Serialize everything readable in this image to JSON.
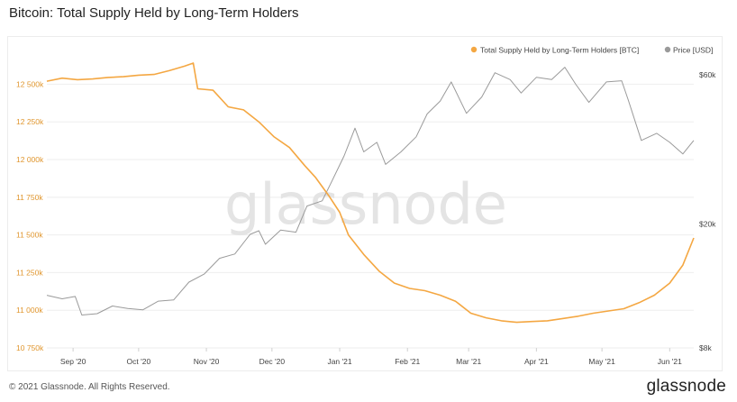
{
  "header": {
    "title": "Bitcoin: Total Supply Held by Long-Term Holders"
  },
  "footer": {
    "copyright": "© 2021 Glassnode. All Rights Reserved.",
    "logo": "glassnode"
  },
  "watermark": "glassnode",
  "colors": {
    "lth": "#f4a742",
    "price": "#9a9a9a",
    "grid": "#eeeeee",
    "left_axis": "#e0962e"
  },
  "chart_data": {
    "type": "line",
    "title": "Bitcoin: Total Supply Held by Long-Term Holders",
    "legend_position": "top-right",
    "grid": true,
    "x_ticks": [
      "Sep '20",
      "Oct '20",
      "Nov '20",
      "Dec '20",
      "Jan '21",
      "Feb '21",
      "Mar '21",
      "Apr '21",
      "May '21",
      "Jun '21"
    ],
    "x_range": [
      "2020-08-20",
      "2021-06-12"
    ],
    "y_left": {
      "ticks": [
        "10 750k",
        "11 000k",
        "11 250k",
        "11 500k",
        "11 750k",
        "12 000k",
        "12 250k",
        "12 500k"
      ],
      "tick_values": [
        10750000,
        11000000,
        11250000,
        11500000,
        11750000,
        12000000,
        12250000,
        12500000
      ],
      "range": [
        10750000,
        12700000
      ]
    },
    "y_right": {
      "scale": "log",
      "ticks": [
        "$8k",
        "$20k",
        "$60k"
      ],
      "tick_values": [
        8000,
        20000,
        60000
      ],
      "range": [
        8000,
        70000
      ]
    },
    "series": [
      {
        "name": "Total Supply Held by Long-Term Holders [BTC]",
        "axis": "left",
        "points": [
          [
            "2020-08-20",
            12520000
          ],
          [
            "2020-08-27",
            12540000
          ],
          [
            "2020-09-03",
            12530000
          ],
          [
            "2020-09-10",
            12535000
          ],
          [
            "2020-09-17",
            12545000
          ],
          [
            "2020-09-24",
            12550000
          ],
          [
            "2020-10-01",
            12560000
          ],
          [
            "2020-10-08",
            12565000
          ],
          [
            "2020-10-15",
            12590000
          ],
          [
            "2020-10-22",
            12620000
          ],
          [
            "2020-10-26",
            12640000
          ],
          [
            "2020-10-28",
            12470000
          ],
          [
            "2020-11-04",
            12460000
          ],
          [
            "2020-11-11",
            12350000
          ],
          [
            "2020-11-18",
            12330000
          ],
          [
            "2020-11-25",
            12250000
          ],
          [
            "2020-12-02",
            12150000
          ],
          [
            "2020-12-09",
            12080000
          ],
          [
            "2020-12-16",
            11960000
          ],
          [
            "2020-12-21",
            11880000
          ],
          [
            "2020-12-27",
            11760000
          ],
          [
            "2021-01-01",
            11650000
          ],
          [
            "2021-01-05",
            11500000
          ],
          [
            "2021-01-12",
            11370000
          ],
          [
            "2021-01-19",
            11260000
          ],
          [
            "2021-01-26",
            11180000
          ],
          [
            "2021-02-02",
            11145000
          ],
          [
            "2021-02-09",
            11130000
          ],
          [
            "2021-02-16",
            11100000
          ],
          [
            "2021-02-23",
            11060000
          ],
          [
            "2021-03-02",
            10980000
          ],
          [
            "2021-03-09",
            10950000
          ],
          [
            "2021-03-16",
            10930000
          ],
          [
            "2021-03-23",
            10920000
          ],
          [
            "2021-03-30",
            10925000
          ],
          [
            "2021-04-06",
            10930000
          ],
          [
            "2021-04-13",
            10945000
          ],
          [
            "2021-04-20",
            10960000
          ],
          [
            "2021-04-27",
            10980000
          ],
          [
            "2021-05-04",
            10995000
          ],
          [
            "2021-05-11",
            11010000
          ],
          [
            "2021-05-18",
            11050000
          ],
          [
            "2021-05-25",
            11100000
          ],
          [
            "2021-06-01",
            11180000
          ],
          [
            "2021-06-07",
            11300000
          ],
          [
            "2021-06-12",
            11480000
          ]
        ]
      },
      {
        "name": "Price [USD]",
        "axis": "right",
        "points": [
          [
            "2020-08-20",
            11800
          ],
          [
            "2020-08-27",
            11500
          ],
          [
            "2020-09-02",
            11700
          ],
          [
            "2020-09-05",
            10200
          ],
          [
            "2020-09-12",
            10300
          ],
          [
            "2020-09-19",
            10900
          ],
          [
            "2020-09-26",
            10700
          ],
          [
            "2020-10-03",
            10600
          ],
          [
            "2020-10-10",
            11300
          ],
          [
            "2020-10-17",
            11400
          ],
          [
            "2020-10-24",
            13000
          ],
          [
            "2020-10-31",
            13800
          ],
          [
            "2020-11-07",
            15500
          ],
          [
            "2020-11-14",
            16000
          ],
          [
            "2020-11-21",
            18500
          ],
          [
            "2020-11-25",
            19000
          ],
          [
            "2020-11-28",
            17200
          ],
          [
            "2020-12-05",
            19100
          ],
          [
            "2020-12-12",
            18800
          ],
          [
            "2020-12-17",
            22800
          ],
          [
            "2020-12-24",
            23700
          ],
          [
            "2020-12-28",
            27000
          ],
          [
            "2021-01-03",
            33000
          ],
          [
            "2021-01-08",
            40500
          ],
          [
            "2021-01-12",
            34000
          ],
          [
            "2021-01-18",
            36500
          ],
          [
            "2021-01-22",
            31000
          ],
          [
            "2021-01-29",
            34000
          ],
          [
            "2021-02-05",
            38000
          ],
          [
            "2021-02-10",
            45000
          ],
          [
            "2021-02-16",
            49500
          ],
          [
            "2021-02-21",
            57000
          ],
          [
            "2021-02-28",
            45200
          ],
          [
            "2021-03-07",
            51000
          ],
          [
            "2021-03-13",
            61000
          ],
          [
            "2021-03-20",
            58000
          ],
          [
            "2021-03-25",
            52500
          ],
          [
            "2021-04-01",
            59000
          ],
          [
            "2021-04-08",
            58000
          ],
          [
            "2021-04-14",
            63500
          ],
          [
            "2021-04-19",
            56000
          ],
          [
            "2021-04-25",
            49000
          ],
          [
            "2021-05-03",
            57000
          ],
          [
            "2021-05-10",
            57500
          ],
          [
            "2021-05-13",
            50000
          ],
          [
            "2021-05-19",
            37000
          ],
          [
            "2021-05-26",
            39000
          ],
          [
            "2021-06-01",
            36500
          ],
          [
            "2021-06-07",
            33500
          ],
          [
            "2021-06-12",
            37000
          ]
        ]
      }
    ]
  }
}
